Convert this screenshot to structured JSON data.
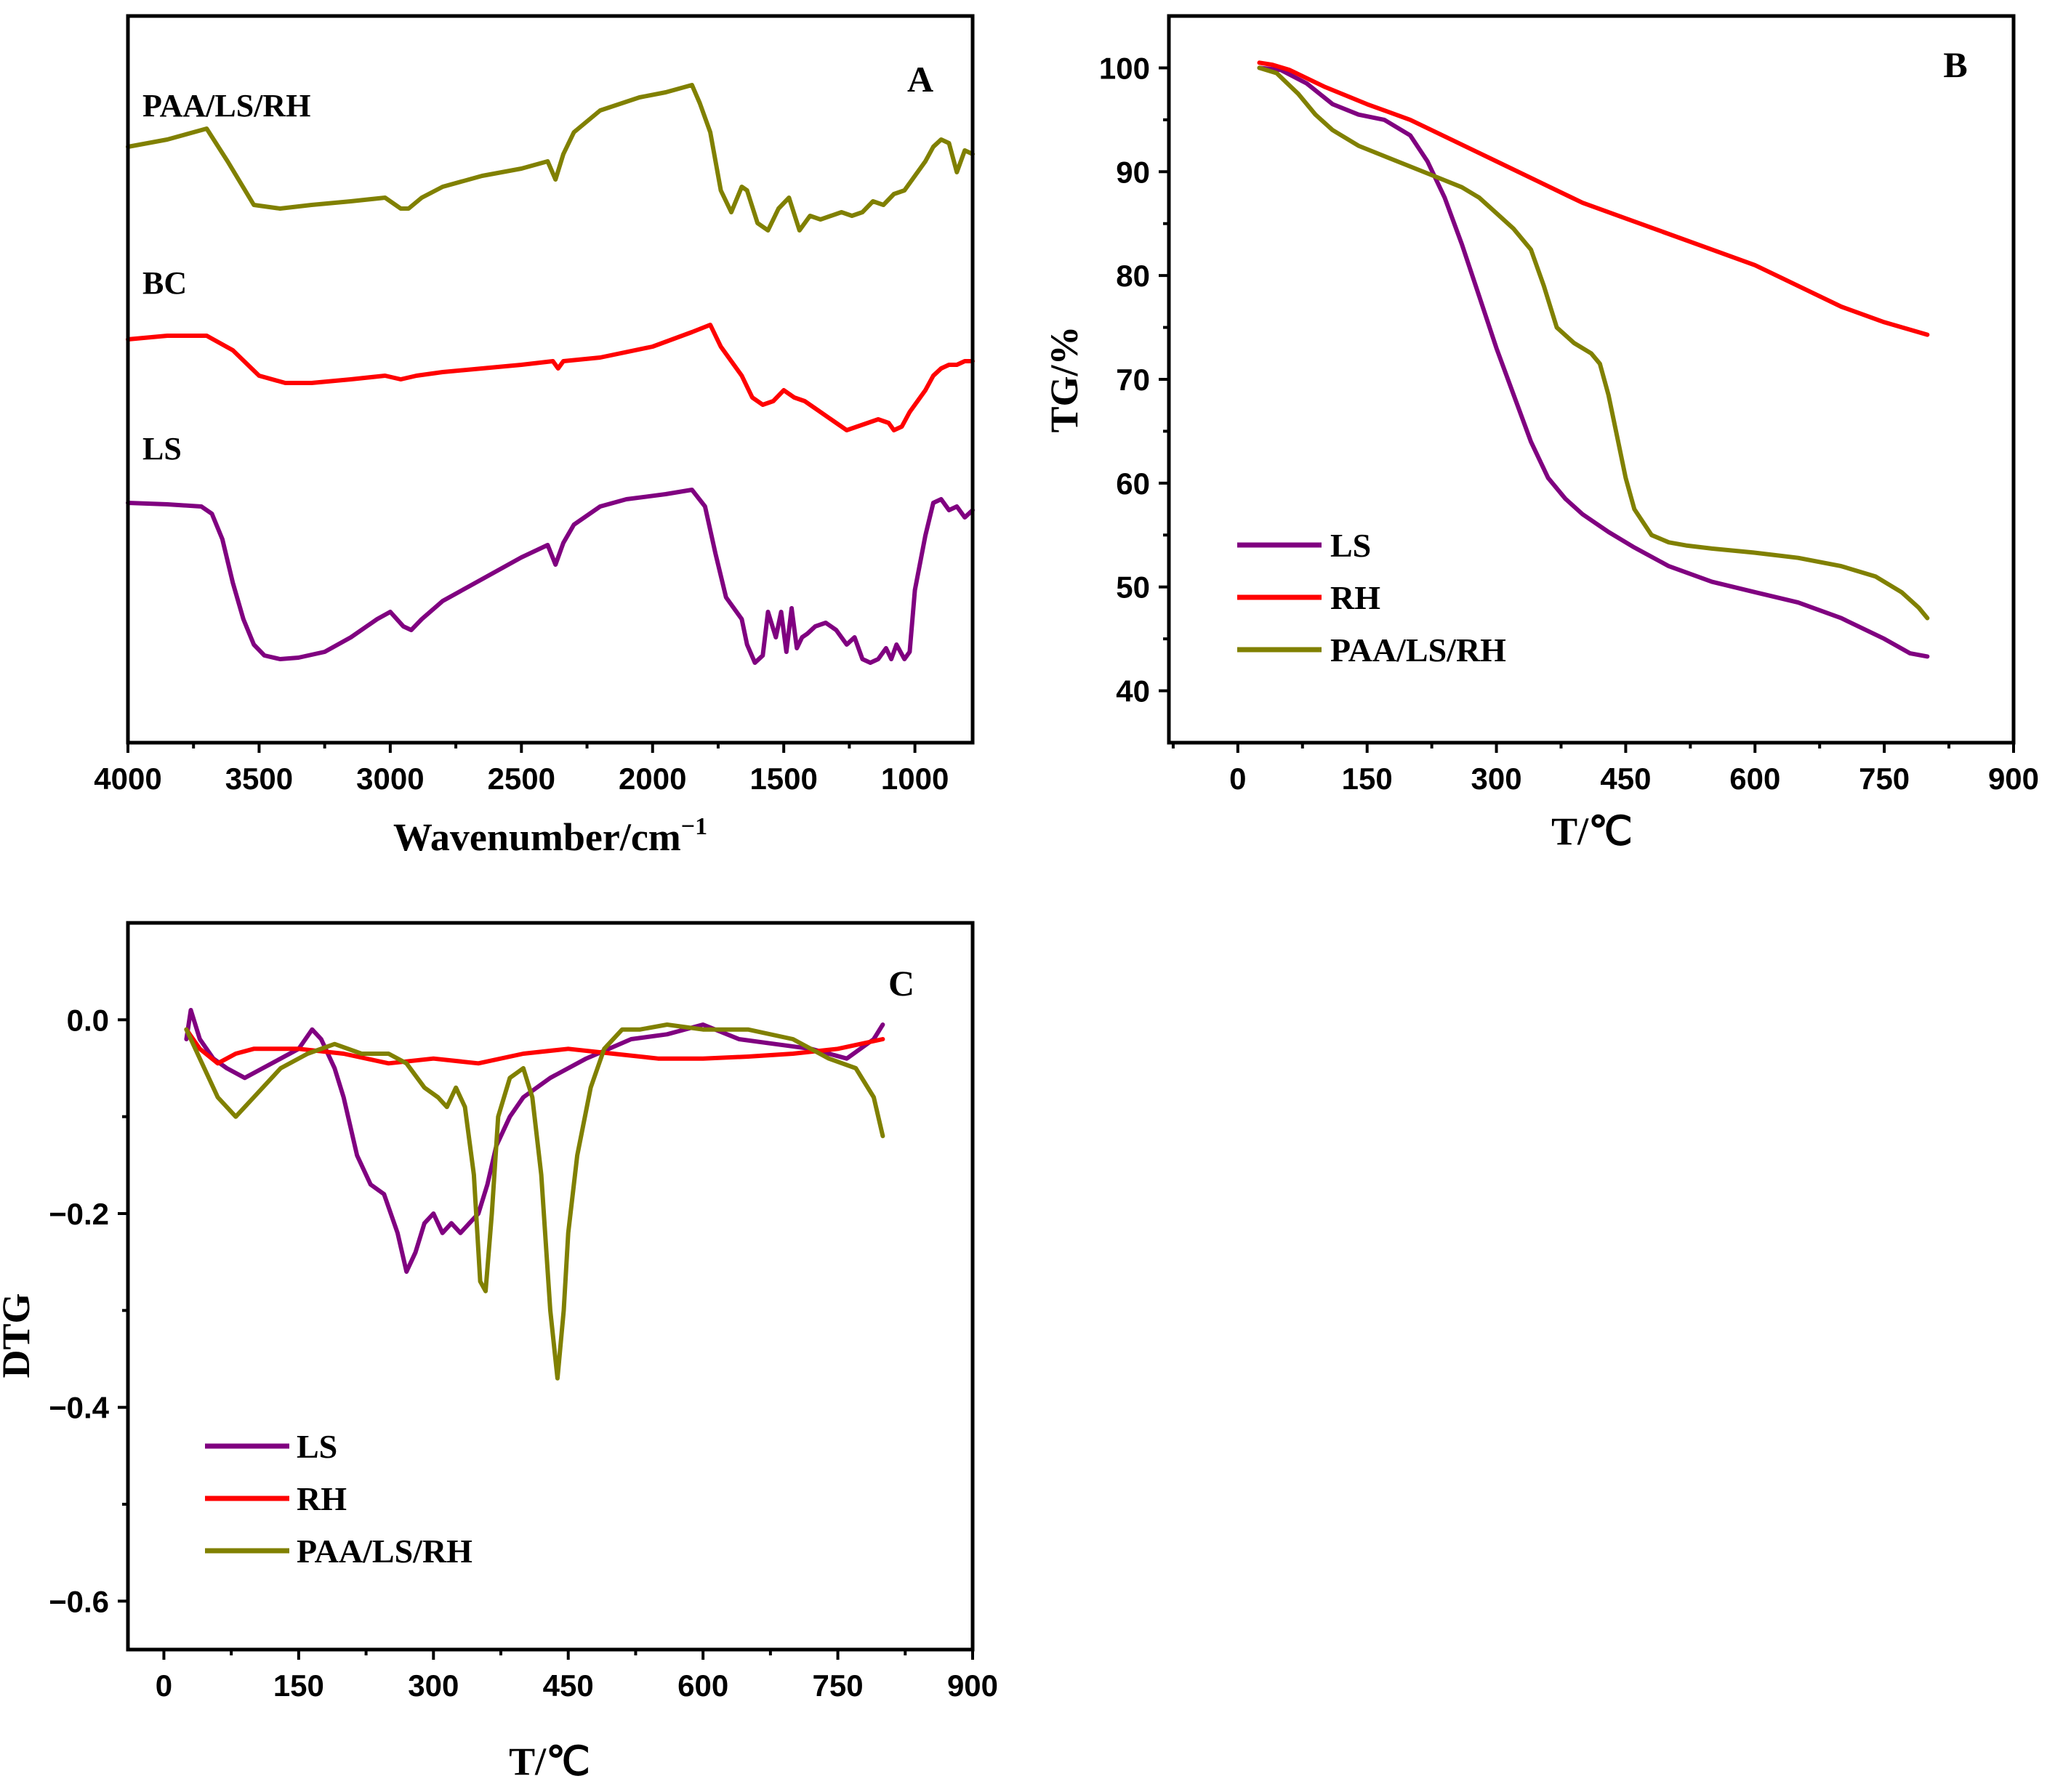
{
  "chart_data": [
    {
      "id": "A",
      "type": "line",
      "panel_label": "A",
      "xlabel": "Wavenumber/cm",
      "xlabel_sup": "−1",
      "ylabel": "",
      "xlim": [
        4000,
        780
      ],
      "ylim": [
        0,
        10
      ],
      "x_ticks": [
        4000,
        3500,
        3000,
        2500,
        2000,
        1500,
        1000
      ],
      "x_tick_labels": [
        "4000",
        "3500",
        "3000",
        "2500",
        "2000",
        "1500",
        "1000"
      ],
      "series": [
        {
          "name": "PAA/LS/RH",
          "color": "#808000",
          "x": [
            4000,
            3850,
            3700,
            3620,
            3520,
            3420,
            3300,
            3150,
            3020,
            2960,
            2930,
            2880,
            2800,
            2650,
            2500,
            2400,
            2370,
            2340,
            2300,
            2200,
            2050,
            1950,
            1850,
            1820,
            1780,
            1740,
            1700,
            1660,
            1640,
            1600,
            1560,
            1520,
            1480,
            1440,
            1400,
            1360,
            1320,
            1280,
            1240,
            1200,
            1160,
            1120,
            1080,
            1040,
            1000,
            960,
            930,
            900,
            870,
            840,
            810,
            780
          ],
          "y": [
            8.2,
            8.3,
            8.45,
            8.0,
            7.4,
            7.35,
            7.4,
            7.45,
            7.5,
            7.35,
            7.35,
            7.5,
            7.65,
            7.8,
            7.9,
            8.0,
            7.75,
            8.1,
            8.4,
            8.7,
            8.88,
            8.95,
            9.05,
            8.8,
            8.4,
            7.6,
            7.3,
            7.65,
            7.6,
            7.15,
            7.05,
            7.35,
            7.5,
            7.05,
            7.25,
            7.2,
            7.25,
            7.3,
            7.25,
            7.3,
            7.45,
            7.4,
            7.55,
            7.6,
            7.8,
            8.0,
            8.2,
            8.3,
            8.25,
            7.85,
            8.15,
            8.1
          ]
        },
        {
          "name": "BC",
          "color": "#ff0000",
          "x": [
            4000,
            3850,
            3700,
            3600,
            3500,
            3400,
            3300,
            3150,
            3020,
            2960,
            2900,
            2800,
            2650,
            2500,
            2380,
            2360,
            2340,
            2200,
            2000,
            1850,
            1780,
            1740,
            1700,
            1660,
            1620,
            1580,
            1540,
            1500,
            1460,
            1420,
            1380,
            1320,
            1260,
            1220,
            1180,
            1140,
            1100,
            1080,
            1050,
            1020,
            990,
            960,
            930,
            900,
            870,
            840,
            810,
            780
          ],
          "y": [
            5.55,
            5.6,
            5.6,
            5.4,
            5.05,
            4.95,
            4.95,
            5.0,
            5.05,
            5.0,
            5.05,
            5.1,
            5.15,
            5.2,
            5.25,
            5.15,
            5.25,
            5.3,
            5.45,
            5.65,
            5.75,
            5.45,
            5.25,
            5.05,
            4.75,
            4.65,
            4.7,
            4.85,
            4.75,
            4.7,
            4.6,
            4.45,
            4.3,
            4.35,
            4.4,
            4.45,
            4.4,
            4.3,
            4.35,
            4.55,
            4.7,
            4.85,
            5.05,
            5.15,
            5.2,
            5.2,
            5.25,
            5.25
          ]
        },
        {
          "name": "LS",
          "color": "#800080",
          "x": [
            4000,
            3850,
            3720,
            3680,
            3640,
            3600,
            3560,
            3520,
            3480,
            3420,
            3350,
            3250,
            3150,
            3050,
            3000,
            2950,
            2920,
            2880,
            2800,
            2700,
            2600,
            2500,
            2400,
            2370,
            2340,
            2300,
            2200,
            2100,
            1950,
            1850,
            1800,
            1760,
            1720,
            1700,
            1660,
            1640,
            1610,
            1580,
            1560,
            1530,
            1510,
            1490,
            1470,
            1450,
            1430,
            1410,
            1380,
            1340,
            1300,
            1260,
            1230,
            1200,
            1170,
            1140,
            1110,
            1090,
            1070,
            1040,
            1020,
            1000,
            960,
            930,
            900,
            870,
            840,
            810,
            780
          ],
          "y": [
            3.3,
            3.28,
            3.25,
            3.15,
            2.8,
            2.2,
            1.7,
            1.35,
            1.2,
            1.15,
            1.17,
            1.25,
            1.45,
            1.7,
            1.8,
            1.6,
            1.55,
            1.7,
            1.95,
            2.15,
            2.35,
            2.55,
            2.72,
            2.45,
            2.75,
            3.0,
            3.25,
            3.35,
            3.42,
            3.48,
            3.25,
            2.6,
            2.0,
            1.9,
            1.7,
            1.35,
            1.1,
            1.2,
            1.8,
            1.45,
            1.8,
            1.25,
            1.85,
            1.3,
            1.45,
            1.5,
            1.6,
            1.65,
            1.55,
            1.35,
            1.45,
            1.15,
            1.1,
            1.15,
            1.3,
            1.15,
            1.35,
            1.15,
            1.25,
            2.1,
            2.85,
            3.3,
            3.35,
            3.2,
            3.25,
            3.1,
            3.2
          ]
        }
      ]
    },
    {
      "id": "B",
      "type": "line",
      "panel_label": "B",
      "xlabel": "T/℃",
      "ylabel": "TG/%",
      "xlim": [
        -80,
        900
      ],
      "ylim": [
        35,
        105
      ],
      "x_ticks": [
        0,
        150,
        300,
        450,
        600,
        750,
        900
      ],
      "x_tick_labels": [
        "0",
        "150",
        "300",
        "450",
        "600",
        "750",
        "900"
      ],
      "y_ticks": [
        40,
        50,
        60,
        70,
        80,
        90,
        100
      ],
      "y_tick_labels": [
        "40",
        "50",
        "60",
        "70",
        "80",
        "90",
        "100"
      ],
      "legend": [
        "LS",
        "RH",
        "PAA/LS/RH"
      ],
      "legend_position": "lower-left",
      "series": [
        {
          "name": "LS",
          "color": "#800080",
          "x": [
            25,
            50,
            80,
            110,
            140,
            170,
            200,
            220,
            240,
            260,
            280,
            300,
            320,
            340,
            360,
            380,
            400,
            430,
            460,
            500,
            550,
            600,
            650,
            700,
            750,
            780,
            800
          ],
          "y": [
            100,
            99.8,
            98.5,
            96.5,
            95.5,
            95,
            93.5,
            91,
            87.5,
            83,
            78,
            73,
            68.5,
            64,
            60.5,
            58.5,
            57,
            55.3,
            53.8,
            52,
            50.5,
            49.5,
            48.5,
            47,
            45,
            43.6,
            43.3
          ]
        },
        {
          "name": "RH",
          "color": "#ff0000",
          "x": [
            25,
            40,
            60,
            80,
            100,
            150,
            200,
            250,
            300,
            350,
            400,
            450,
            500,
            550,
            600,
            650,
            700,
            750,
            800
          ],
          "y": [
            100.5,
            100.3,
            99.8,
            99,
            98.2,
            96.5,
            95,
            93,
            91,
            89,
            87,
            85.5,
            84,
            82.5,
            81,
            79,
            77,
            75.5,
            74.3
          ]
        },
        {
          "name": "PAA/LS/RH",
          "color": "#808000",
          "x": [
            25,
            45,
            70,
            90,
            110,
            140,
            170,
            200,
            230,
            260,
            280,
            300,
            320,
            340,
            355,
            370,
            390,
            410,
            420,
            430,
            440,
            450,
            460,
            480,
            500,
            520,
            550,
            600,
            650,
            700,
            740,
            770,
            790,
            800
          ],
          "y": [
            100,
            99.5,
            97.5,
            95.5,
            94,
            92.5,
            91.5,
            90.5,
            89.5,
            88.5,
            87.5,
            86,
            84.5,
            82.5,
            79,
            75,
            73.5,
            72.5,
            71.5,
            68.5,
            64.5,
            60.5,
            57.5,
            55,
            54.3,
            54,
            53.7,
            53.3,
            52.8,
            52,
            51,
            49.5,
            48,
            47
          ]
        }
      ]
    },
    {
      "id": "C",
      "type": "line",
      "panel_label": "C",
      "xlabel": "T/℃",
      "ylabel": "DTG",
      "xlim": [
        -40,
        900
      ],
      "ylim": [
        -0.65,
        0.1
      ],
      "x_ticks": [
        0,
        150,
        300,
        450,
        600,
        750,
        900
      ],
      "x_tick_labels": [
        "0",
        "150",
        "300",
        "450",
        "600",
        "750",
        "900"
      ],
      "y_ticks": [
        0.0,
        -0.2,
        -0.4,
        -0.6
      ],
      "y_tick_labels": [
        "0.0",
        "−0.2",
        "−0.4",
        "−0.6"
      ],
      "legend": [
        "LS",
        "RH",
        "PAA/LS/RH"
      ],
      "legend_position": "lower-left",
      "series": [
        {
          "name": "LS",
          "color": "#800080",
          "x": [
            25,
            30,
            40,
            55,
            70,
            90,
            110,
            130,
            150,
            165,
            175,
            190,
            200,
            215,
            230,
            245,
            260,
            270,
            280,
            290,
            300,
            310,
            320,
            330,
            340,
            350,
            360,
            370,
            385,
            400,
            430,
            470,
            520,
            560,
            600,
            640,
            680,
            720,
            760,
            790,
            800
          ],
          "y": [
            -0.02,
            0.01,
            -0.02,
            -0.04,
            -0.05,
            -0.06,
            -0.05,
            -0.04,
            -0.03,
            -0.01,
            -0.02,
            -0.05,
            -0.08,
            -0.14,
            -0.17,
            -0.18,
            -0.22,
            -0.26,
            -0.24,
            -0.21,
            -0.2,
            -0.22,
            -0.21,
            -0.22,
            -0.21,
            -0.2,
            -0.17,
            -0.13,
            -0.1,
            -0.08,
            -0.06,
            -0.04,
            -0.02,
            -0.015,
            -0.005,
            -0.02,
            -0.025,
            -0.03,
            -0.04,
            -0.02,
            -0.005
          ]
        },
        {
          "name": "RH",
          "color": "#ff0000",
          "x": [
            25,
            40,
            60,
            80,
            100,
            150,
            200,
            250,
            300,
            350,
            400,
            450,
            500,
            550,
            600,
            650,
            700,
            750,
            800
          ],
          "y": [
            -0.01,
            -0.03,
            -0.045,
            -0.035,
            -0.03,
            -0.03,
            -0.035,
            -0.045,
            -0.04,
            -0.045,
            -0.035,
            -0.03,
            -0.035,
            -0.04,
            -0.04,
            -0.038,
            -0.035,
            -0.03,
            -0.02
          ]
        },
        {
          "name": "PAA/LS/RH",
          "color": "#808000",
          "x": [
            25,
            40,
            60,
            80,
            100,
            130,
            160,
            190,
            220,
            250,
            270,
            290,
            305,
            315,
            325,
            335,
            345,
            352,
            358,
            365,
            372,
            385,
            400,
            410,
            420,
            430,
            438,
            445,
            450,
            460,
            475,
            490,
            510,
            530,
            560,
            600,
            650,
            700,
            740,
            770,
            790,
            800
          ],
          "y": [
            -0.01,
            -0.04,
            -0.08,
            -0.1,
            -0.08,
            -0.05,
            -0.035,
            -0.025,
            -0.035,
            -0.035,
            -0.045,
            -0.07,
            -0.08,
            -0.09,
            -0.07,
            -0.09,
            -0.16,
            -0.27,
            -0.28,
            -0.2,
            -0.1,
            -0.06,
            -0.05,
            -0.08,
            -0.16,
            -0.3,
            -0.37,
            -0.3,
            -0.22,
            -0.14,
            -0.07,
            -0.03,
            -0.01,
            -0.01,
            -0.005,
            -0.01,
            -0.01,
            -0.02,
            -0.04,
            -0.05,
            -0.08,
            -0.12
          ]
        }
      ]
    }
  ]
}
